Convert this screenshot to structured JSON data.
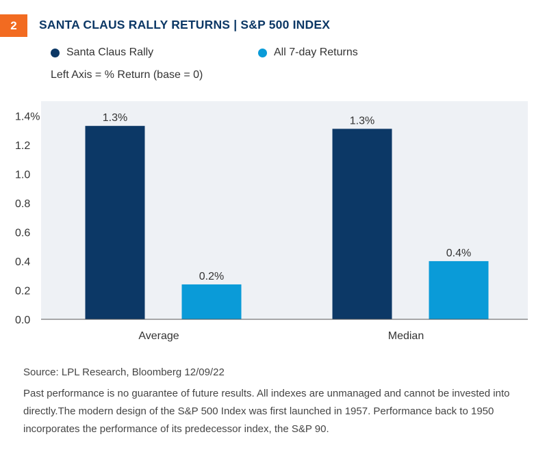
{
  "header": {
    "badge": "2",
    "title": "SANTA CLAUS RALLY RETURNS | S&P 500 INDEX"
  },
  "legend": [
    {
      "label": "Santa Claus Rally",
      "color": "#0c3866"
    },
    {
      "label": "All 7-day Returns",
      "color": "#0a9bd8"
    }
  ],
  "axis_note": "Left Axis = % Return (base = 0)",
  "chart_data": {
    "type": "bar",
    "categories": [
      "Average",
      "Median"
    ],
    "series": [
      {
        "name": "Santa Claus Rally",
        "values": [
          1.33,
          1.31
        ],
        "labels": [
          "1.3%",
          "1.3%"
        ],
        "color": "#0c3866"
      },
      {
        "name": "All 7-day Returns",
        "values": [
          0.24,
          0.4
        ],
        "labels": [
          "0.2%",
          "0.4%"
        ],
        "color": "#0a9bd8"
      }
    ],
    "ylim": [
      0,
      1.5
    ],
    "yticks": [
      0,
      0.2,
      0.4,
      0.6,
      0.8,
      1.0,
      1.2,
      1.4
    ],
    "ytick_labels": [
      "0.0",
      "0.2",
      "0.4",
      "0.6",
      "0.8",
      "1.0",
      "1.2",
      "1.4%"
    ],
    "plot_background": "#eef1f5",
    "grid": false
  },
  "footer": {
    "source": "Source: LPL Research, Bloomberg  12/09/22",
    "disclaimer": "Past performance is no guarantee of future results. All indexes are unmanaged and cannot be invested into directly.The modern design of the S&P 500 Index was first launched in 1957. Performance back to 1950 incorporates the performance of its predecessor index, the S&P 90."
  }
}
